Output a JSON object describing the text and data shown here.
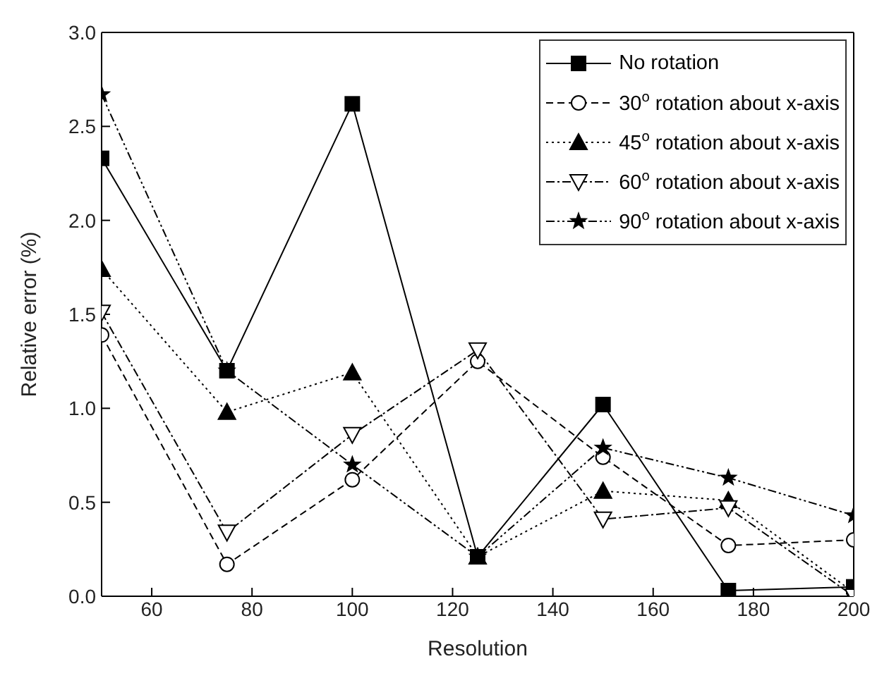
{
  "chart_data": {
    "type": "line",
    "xlabel": "Resolution",
    "ylabel": "Relative error (%)",
    "x": [
      50,
      75,
      100,
      125,
      150,
      175,
      200
    ],
    "xlim": [
      50,
      200
    ],
    "xticks": [
      60,
      80,
      100,
      120,
      140,
      160,
      180,
      200
    ],
    "ylim": [
      0,
      3.0
    ],
    "yticks": [
      {
        "value": 0,
        "label": "0.0"
      },
      {
        "value": 0.5,
        "label": "0.5"
      },
      {
        "value": 1,
        "label": "1.0"
      },
      {
        "value": 1.5,
        "label": "1.5"
      },
      {
        "value": 2,
        "label": "2.0"
      },
      {
        "value": 2.5,
        "label": "2.5"
      },
      {
        "value": 3,
        "label": "3.0"
      }
    ],
    "legend": "top right",
    "series": [
      {
        "name": "No rotation",
        "color": "#000000",
        "marker": "square",
        "line_style": "solid",
        "values": [
          2.33,
          1.2,
          2.62,
          0.21,
          1.02,
          0.03,
          0.05
        ]
      },
      {
        "name": "30$^{o}$ rotation about x-axis",
        "color": "#000000",
        "marker": "circle",
        "line_style": "dashed",
        "values": [
          1.39,
          0.17,
          0.62,
          1.25,
          0.74,
          0.27,
          0.3
        ]
      },
      {
        "name": "45$^{o}$ rotation about x-axis",
        "color": "#000000",
        "marker": "triangle",
        "line_style": "dotted",
        "values": [
          1.74,
          0.98,
          1.19,
          0.21,
          0.56,
          0.51,
          0.02
        ]
      },
      {
        "name": "60$^{o}$ rotation about x-axis",
        "color": "#000000",
        "marker": "triangle_down",
        "line_style": "dashdot",
        "values": [
          1.51,
          0.34,
          0.86,
          1.31,
          0.41,
          0.47,
          0.0
        ]
      },
      {
        "name": "90$^{o}$ rotation about x-axis",
        "color": "#000000",
        "marker": "star",
        "line_style": "dashdotdot",
        "values": [
          2.67,
          1.2,
          0.7,
          0.21,
          0.79,
          0.63,
          0.43
        ]
      }
    ]
  }
}
